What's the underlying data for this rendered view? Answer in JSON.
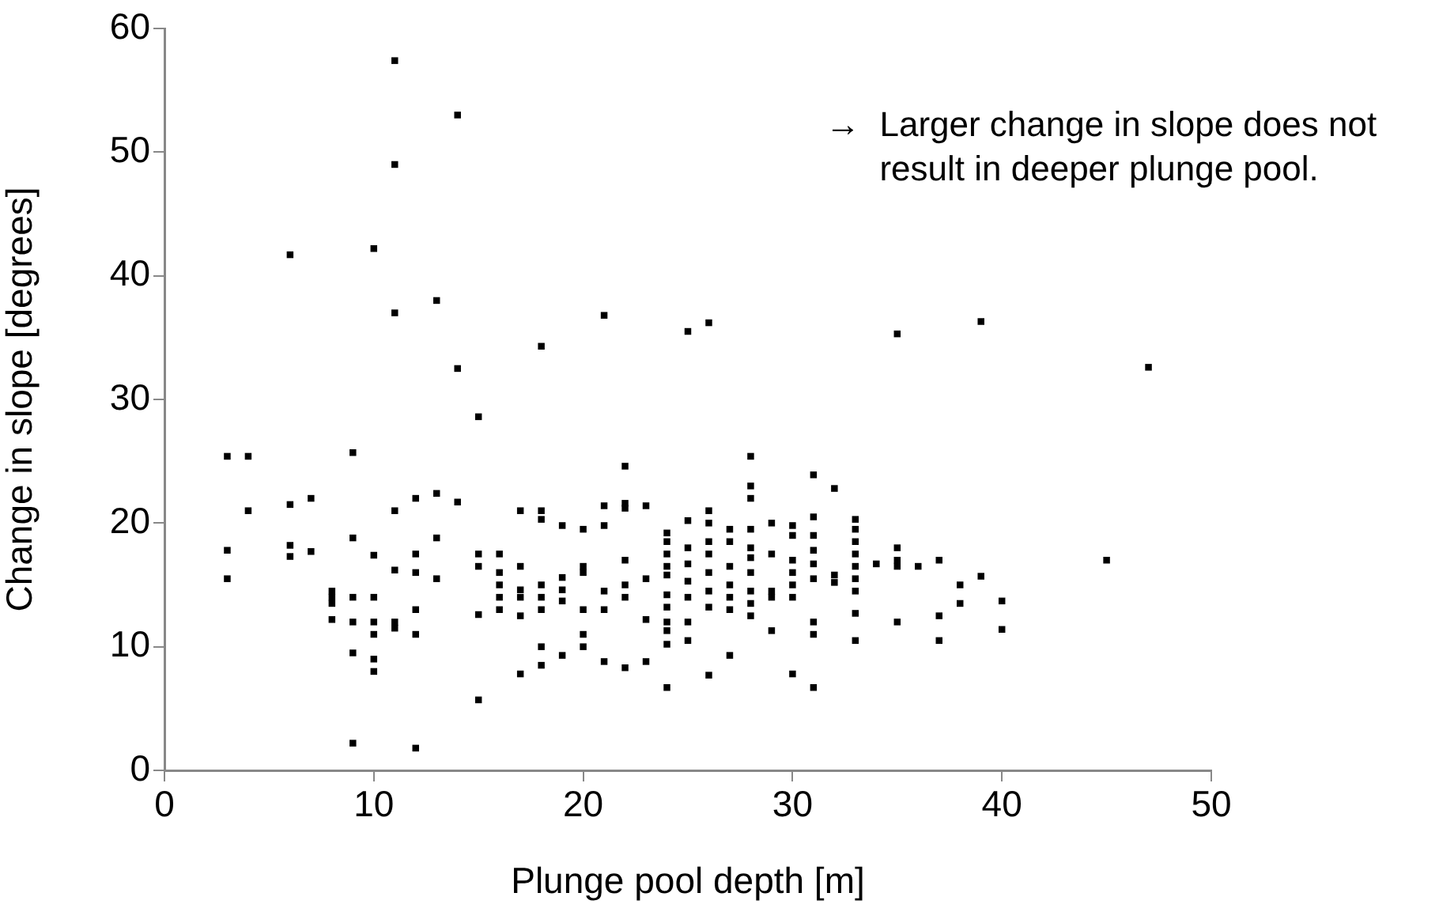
{
  "chart_data": {
    "type": "scatter",
    "xlabel": "Plunge pool depth [m]",
    "ylabel": "Change in slope [degrees]",
    "annotations": [
      "→ Larger change in slope does not result in deeper plunge pool."
    ],
    "xlim": [
      0,
      50
    ],
    "xticks": [
      0,
      10,
      20,
      30,
      40,
      50
    ],
    "ylim": [
      0,
      60
    ],
    "yticks": [
      0,
      10,
      20,
      30,
      40,
      50,
      60
    ],
    "grid": false,
    "legend": false,
    "marker": "square",
    "series": [
      {
        "color": "#000000",
        "x": [
          3,
          3,
          3,
          4,
          4,
          6,
          6,
          6,
          6,
          7,
          7,
          8,
          8,
          8,
          8,
          9,
          9,
          9,
          9,
          9,
          9,
          10,
          10,
          10,
          10,
          10,
          10,
          10,
          11,
          11,
          11,
          11,
          11,
          11,
          11,
          12,
          12,
          12,
          12,
          12,
          12,
          13,
          13,
          13,
          13,
          14,
          14,
          14,
          15,
          15,
          15,
          15,
          15,
          16,
          16,
          16,
          16,
          16,
          17,
          17,
          17,
          17,
          17,
          17,
          18,
          18,
          18,
          18,
          18,
          18,
          18,
          18,
          19,
          19,
          19,
          19,
          19,
          20,
          20,
          20,
          20,
          20,
          20,
          21,
          21,
          21,
          21,
          21,
          21,
          22,
          22,
          22,
          22,
          22,
          22,
          22,
          23,
          23,
          23,
          23,
          24,
          24,
          24,
          24,
          24,
          24,
          24,
          24,
          24,
          24,
          24,
          25,
          25,
          25,
          25,
          25,
          25,
          25,
          25,
          26,
          26,
          26,
          26,
          26,
          26,
          26,
          26,
          26,
          27,
          27,
          27,
          27,
          27,
          27,
          27,
          28,
          28,
          28,
          28,
          28,
          28,
          28,
          28,
          28,
          28,
          29,
          29,
          29,
          29,
          29,
          30,
          30,
          30,
          30,
          30,
          30,
          30,
          31,
          31,
          31,
          31,
          31,
          31,
          31,
          31,
          31,
          32,
          32,
          32,
          33,
          33,
          33,
          33,
          33,
          33,
          33,
          33,
          33,
          34,
          35,
          35,
          35,
          35,
          35,
          36,
          37,
          37,
          37,
          38,
          38,
          39,
          39,
          40,
          40,
          45,
          47
        ],
        "values": [
          25.4,
          17.8,
          15.5,
          25.4,
          21,
          41.7,
          21.5,
          18.2,
          17.3,
          22,
          17.7,
          14.5,
          14,
          13.5,
          12.2,
          25.7,
          18.8,
          14,
          12,
          9.5,
          2.2,
          42.2,
          17.4,
          14,
          12,
          11,
          9,
          8,
          57.4,
          49,
          37,
          21,
          16.2,
          12,
          11.5,
          22,
          17.5,
          16,
          13,
          11,
          1.8,
          38,
          22.4,
          18.8,
          15.5,
          53,
          32.5,
          21.7,
          28.6,
          17.5,
          16.5,
          12.6,
          5.7,
          17.5,
          16,
          15,
          14,
          13,
          21,
          16.5,
          14.6,
          14,
          12.5,
          7.8,
          34.3,
          21,
          20.3,
          15,
          14,
          13,
          10,
          8.5,
          19.8,
          15.6,
          14.6,
          13.7,
          9.3,
          19.5,
          16.5,
          16,
          13,
          11,
          10,
          36.8,
          21.4,
          19.8,
          14.5,
          13,
          8.8,
          24.6,
          21.6,
          21.2,
          17,
          15,
          14,
          8.3,
          21.4,
          15.5,
          12.2,
          8.8,
          19.2,
          18.5,
          17.5,
          16.5,
          15.8,
          14.2,
          13.2,
          12,
          11.3,
          10.2,
          6.7,
          35.5,
          20.2,
          18,
          16.7,
          15.3,
          14,
          12,
          10.5,
          36.2,
          21,
          20,
          18.5,
          17.5,
          16,
          14.5,
          13.2,
          7.7,
          19.5,
          18.5,
          16.5,
          15,
          14,
          13,
          9.3,
          25.4,
          23,
          22,
          19.5,
          18,
          17.2,
          16,
          14.5,
          13.5,
          12.5,
          20,
          17.5,
          14.5,
          14,
          11.3,
          19.8,
          19,
          17,
          16,
          15,
          14,
          7.8,
          23.9,
          20.5,
          19,
          17.8,
          16.7,
          15.5,
          12,
          11,
          6.7,
          22.8,
          15.8,
          15.2,
          20.3,
          19.5,
          18.5,
          17.5,
          16.5,
          15.5,
          14.5,
          12.7,
          10.5,
          16.7,
          35.3,
          18,
          17,
          16.5,
          12,
          16.5,
          17,
          12.5,
          10.5,
          15,
          13.5,
          36.3,
          15.7,
          13.7,
          11.4,
          17,
          32.6
        ]
      }
    ]
  }
}
